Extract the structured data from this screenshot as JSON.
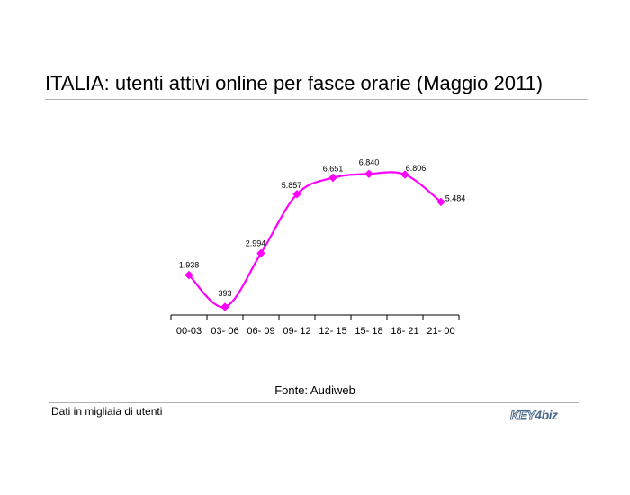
{
  "header": {
    "title": "ITALIA: utenti attivi online per fasce orarie (Maggio 2011)"
  },
  "chart_data": {
    "type": "line",
    "title": "",
    "xlabel": "",
    "ylabel": "",
    "categories": [
      "00-03",
      "03- 06",
      "06- 09",
      "09- 12",
      "12- 15",
      "15- 18",
      "18- 21",
      "21- 00"
    ],
    "series": [
      {
        "values": [
          1938,
          393,
          2994,
          5857,
          6651,
          6840,
          6806,
          5484
        ],
        "labels": [
          "1.938",
          "393",
          "2.994",
          "5.857",
          "6.651",
          "6.840",
          "6.806",
          "5.484"
        ],
        "color": "#ff00ff",
        "marker": "diamond"
      }
    ],
    "ylim": [
      0,
      7200
    ],
    "y_axis_visible": false,
    "grid": false,
    "legend": "none",
    "smooth": true
  },
  "footer": {
    "source": "Fonte: Audiweb",
    "note": "Dati in migliaia di utenti",
    "logo": {
      "part1": "KEY",
      "part2": "4",
      "part3": "biz"
    }
  }
}
